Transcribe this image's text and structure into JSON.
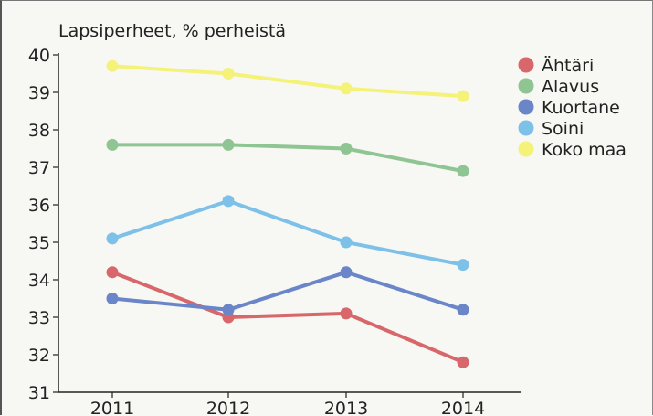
{
  "chart_data": {
    "type": "line",
    "title": "Lapsiperheet, % perheistä",
    "xlabel": "",
    "ylabel": "",
    "x": [
      "2011",
      "2012",
      "2013",
      "2014"
    ],
    "y_ticks": [
      "40",
      "39",
      "38",
      "37",
      "36",
      "35",
      "34",
      "33",
      "32",
      "31"
    ],
    "ylim": [
      31,
      40
    ],
    "grid": false,
    "legend_position": "top-right",
    "series": [
      {
        "name": "Ähtäri",
        "color": "#d8676b",
        "values": [
          34.2,
          33.0,
          33.1,
          31.8
        ]
      },
      {
        "name": "Alavus",
        "color": "#8fc592",
        "values": [
          37.6,
          37.6,
          37.5,
          36.9
        ]
      },
      {
        "name": "Kuortane",
        "color": "#6a86c8",
        "values": [
          33.5,
          33.2,
          34.2,
          33.2
        ]
      },
      {
        "name": "Soini",
        "color": "#7dc1e8",
        "values": [
          35.1,
          36.1,
          35.0,
          34.4
        ]
      },
      {
        "name": "Koko maa",
        "color": "#f5f27a",
        "values": [
          39.7,
          39.5,
          39.1,
          38.9
        ]
      }
    ]
  }
}
